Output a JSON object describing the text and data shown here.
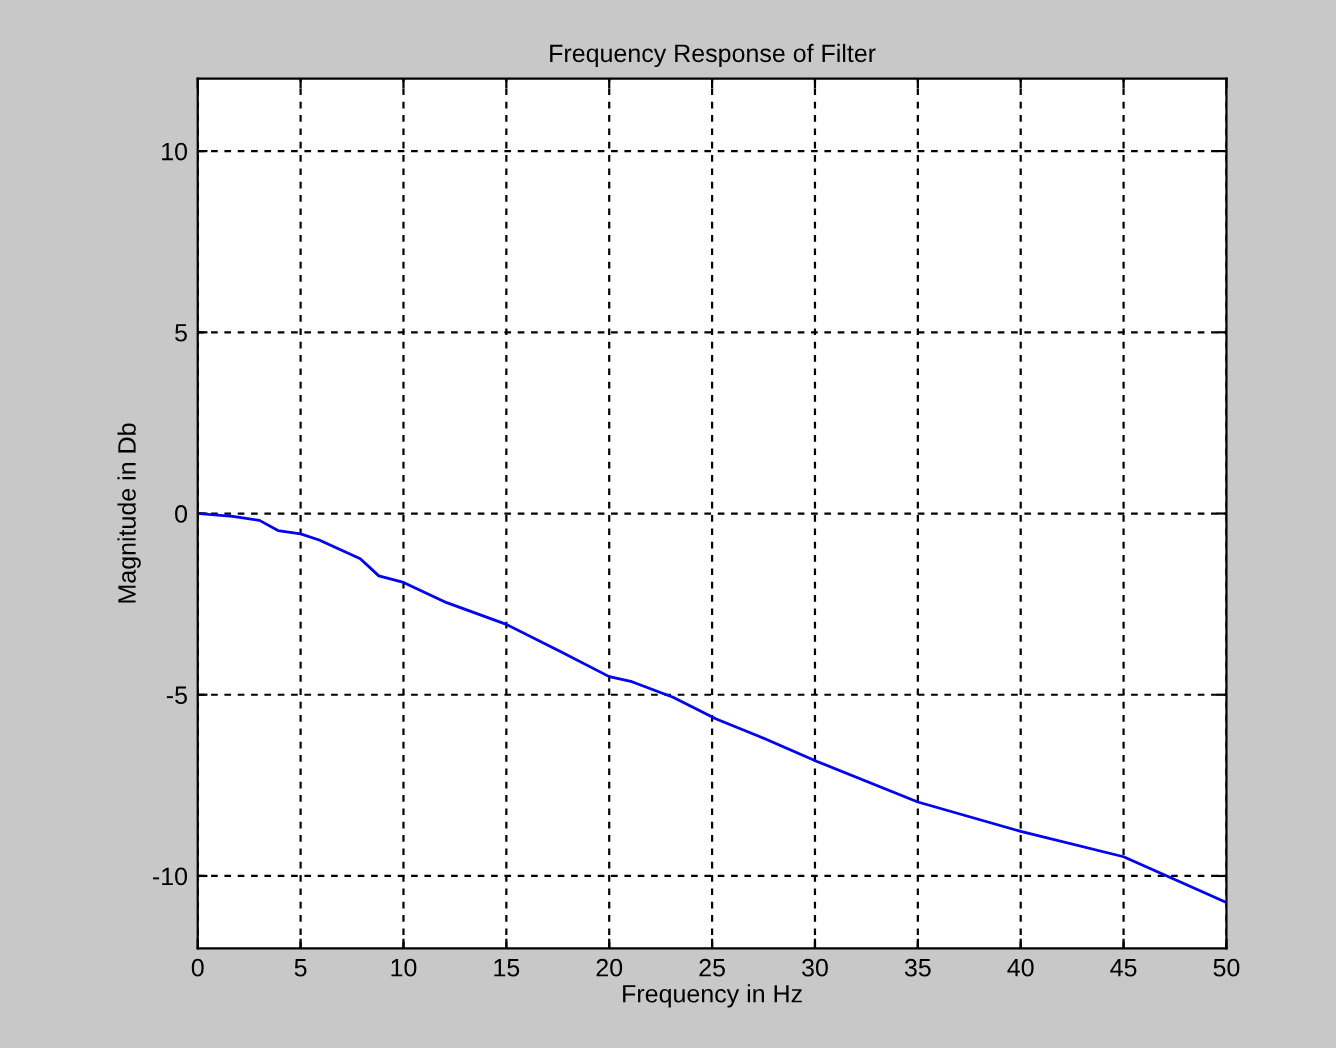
{
  "chart_data": {
    "type": "line",
    "title": "Frequency Response of Filter",
    "xlabel": "Frequency in Hz",
    "ylabel": "Magnitude in Db",
    "x": [
      0,
      1.7,
      3.0,
      3.9,
      5,
      5.9,
      7.9,
      8.8,
      10,
      12.1,
      15,
      17.6,
      20,
      21.1,
      23.1,
      25.2,
      27.3,
      30.1,
      35,
      40,
      45,
      50
    ],
    "series": [
      {
        "color": "#0000ff",
        "values": [
          0,
          -0.08,
          -0.19,
          -0.47,
          -0.56,
          -0.73,
          -1.25,
          -1.72,
          -1.9,
          -2.46,
          -3.06,
          -3.8,
          -4.5,
          -4.64,
          -5.07,
          -5.67,
          -6.15,
          -6.84,
          -7.96,
          -8.77,
          -9.47,
          -10.73
        ]
      }
    ],
    "xlim": [
      0,
      50
    ],
    "ylim": [
      -12,
      12
    ],
    "xticks": [
      0,
      5,
      10,
      15,
      20,
      25,
      30,
      35,
      40,
      45,
      50
    ],
    "yticks": [
      -10,
      -5,
      0,
      5,
      10
    ],
    "grid": true,
    "line_style": "solid",
    "marker": "none"
  }
}
